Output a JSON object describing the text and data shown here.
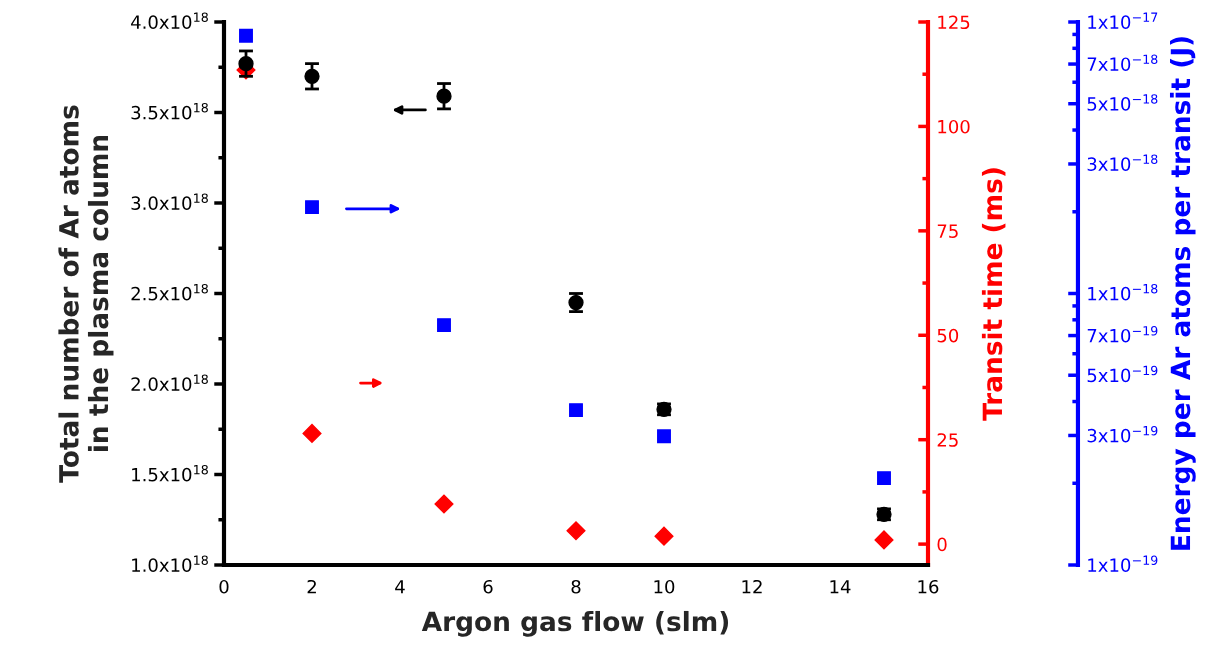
{
  "chart_data": {
    "type": "scatter",
    "xlabel": "Argon gas flow (slm)",
    "ylabel": "Total number of Ar atoms\nin the plasma column",
    "y2label": "Transit time (ms)",
    "y3label": "Energy per Ar atoms per transit (J)",
    "x": [
      0.5,
      2,
      5,
      8,
      10,
      15
    ],
    "series": [
      {
        "color": "#000000",
        "marker": "circle",
        "axis": "y",
        "values": [
          3.77e+18,
          3.7e+18,
          3.59e+18,
          2.45e+18,
          1.86e+18,
          1.28e+18
        ],
        "errors": [
          7e+16,
          7e+16,
          7e+16,
          5e+16,
          3e+16,
          3e+16
        ]
      },
      {
        "color": "#ff0000",
        "marker": "diamond",
        "axis": "y2",
        "values": [
          113.5,
          26.5,
          9.6,
          3.2,
          1.9,
          1.0
        ]
      },
      {
        "color": "#0000ff",
        "marker": "square",
        "axis": "y3",
        "values": [
          8.9e-18,
          2.08e-18,
          7.65e-19,
          3.72e-19,
          2.98e-19,
          2.09e-19
        ]
      }
    ],
    "xlim": [
      0,
      16
    ],
    "xticks": [
      0,
      2,
      4,
      6,
      8,
      10,
      12,
      14,
      16
    ],
    "ylim": [
      1e+18,
      4e+18
    ],
    "yticks": [
      {
        "value": 1e+18,
        "label": "1.0x10$^{18}$"
      },
      {
        "value": 1.5e+18,
        "label": "1.5x10$^{18}$"
      },
      {
        "value": 2e+18,
        "label": "2.0x10$^{18}$"
      },
      {
        "value": 2.5e+18,
        "label": "2.5x10$^{18}$"
      },
      {
        "value": 3e+18,
        "label": "3.0x10$^{18}$"
      },
      {
        "value": 3.5e+18,
        "label": "3.5x10$^{18}$"
      },
      {
        "value": 4e+18,
        "label": "4.0x10$^{18}$"
      }
    ],
    "y2lim": [
      -5,
      125
    ],
    "y2ticks": [
      0,
      25,
      50,
      75,
      100,
      125
    ],
    "log": "y3",
    "y3lim": [
      1e-19,
      1e-17
    ],
    "y3ticks": [
      {
        "value": 1e-19,
        "label": "1x10$^{−19}$"
      },
      {
        "value": 3e-19,
        "label": "3x10$^{−19}$"
      },
      {
        "value": 5e-19,
        "label": "5x10$^{−19}$"
      },
      {
        "value": 7e-19,
        "label": "7x10$^{−19}$"
      },
      {
        "value": 1e-18,
        "label": "1x10$^{−18}$"
      },
      {
        "value": 3e-18,
        "label": "3x10$^{−18}$"
      },
      {
        "value": 5e-18,
        "label": "5x10$^{−18}$"
      },
      {
        "value": 7e-18,
        "label": "7x10$^{−18}$"
      },
      {
        "value": 1e-17,
        "label": "1x10$^{−17}$"
      }
    ],
    "grid": false
  }
}
